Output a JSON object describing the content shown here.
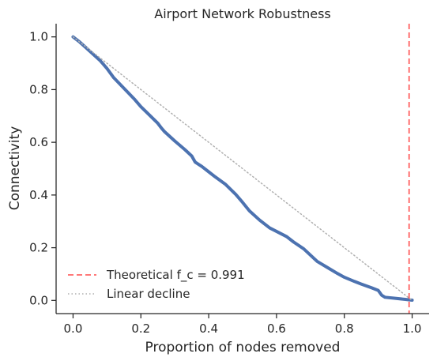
{
  "chart_data": {
    "type": "line",
    "title": "Airport Network Robustness",
    "xlabel": "Proportion of nodes removed",
    "ylabel": "Connectivity",
    "xlim": [
      -0.05,
      1.05
    ],
    "ylim": [
      -0.05,
      1.05
    ],
    "xticks": [
      0.0,
      0.2,
      0.4,
      0.6,
      0.8,
      1.0
    ],
    "xtick_labels": [
      "0.0",
      "0.2",
      "0.4",
      "0.6",
      "0.8",
      "1.0"
    ],
    "yticks": [
      0.0,
      0.2,
      0.4,
      0.6,
      0.8,
      1.0
    ],
    "ytick_labels": [
      "0.0",
      "0.2",
      "0.4",
      "0.6",
      "0.8",
      "1.0"
    ],
    "grid": false,
    "legend_position": "bottom-left",
    "series": [
      {
        "style": "solid-thick",
        "color": "#4C72B0",
        "x": [
          0.0,
          0.02,
          0.05,
          0.08,
          0.1,
          0.12,
          0.15,
          0.18,
          0.2,
          0.22,
          0.25,
          0.26,
          0.27,
          0.3,
          0.33,
          0.35,
          0.36,
          0.38,
          0.4,
          0.42,
          0.45,
          0.48,
          0.5,
          0.52,
          0.55,
          0.58,
          0.6,
          0.63,
          0.65,
          0.68,
          0.7,
          0.72,
          0.75,
          0.78,
          0.8,
          0.83,
          0.85,
          0.88,
          0.9,
          0.91,
          0.92,
          0.95,
          0.98,
          1.0
        ],
        "y": [
          1.0,
          0.98,
          0.945,
          0.91,
          0.88,
          0.845,
          0.805,
          0.765,
          0.735,
          0.71,
          0.672,
          0.655,
          0.64,
          0.605,
          0.572,
          0.548,
          0.525,
          0.508,
          0.488,
          0.468,
          0.44,
          0.402,
          0.372,
          0.34,
          0.305,
          0.275,
          0.262,
          0.242,
          0.222,
          0.196,
          0.172,
          0.148,
          0.125,
          0.102,
          0.088,
          0.072,
          0.062,
          0.048,
          0.038,
          0.02,
          0.012,
          0.008,
          0.004,
          0.001
        ]
      },
      {
        "name": "Linear decline",
        "style": "dotted",
        "color": "#b0b0b0",
        "x": [
          0.0,
          1.0
        ],
        "y": [
          1.0,
          0.0
        ]
      }
    ],
    "vertical_lines": [
      {
        "name": "Theoretical f_c = 0.991",
        "x": 0.991,
        "style": "dashed",
        "color": "#ff4d4d"
      }
    ],
    "legend_entries": [
      {
        "label": "Theoretical f_c = 0.991",
        "style": "dashed",
        "color": "#ff4d4d"
      },
      {
        "label": "Linear decline",
        "style": "dotted",
        "color": "#b0b0b0"
      }
    ]
  }
}
